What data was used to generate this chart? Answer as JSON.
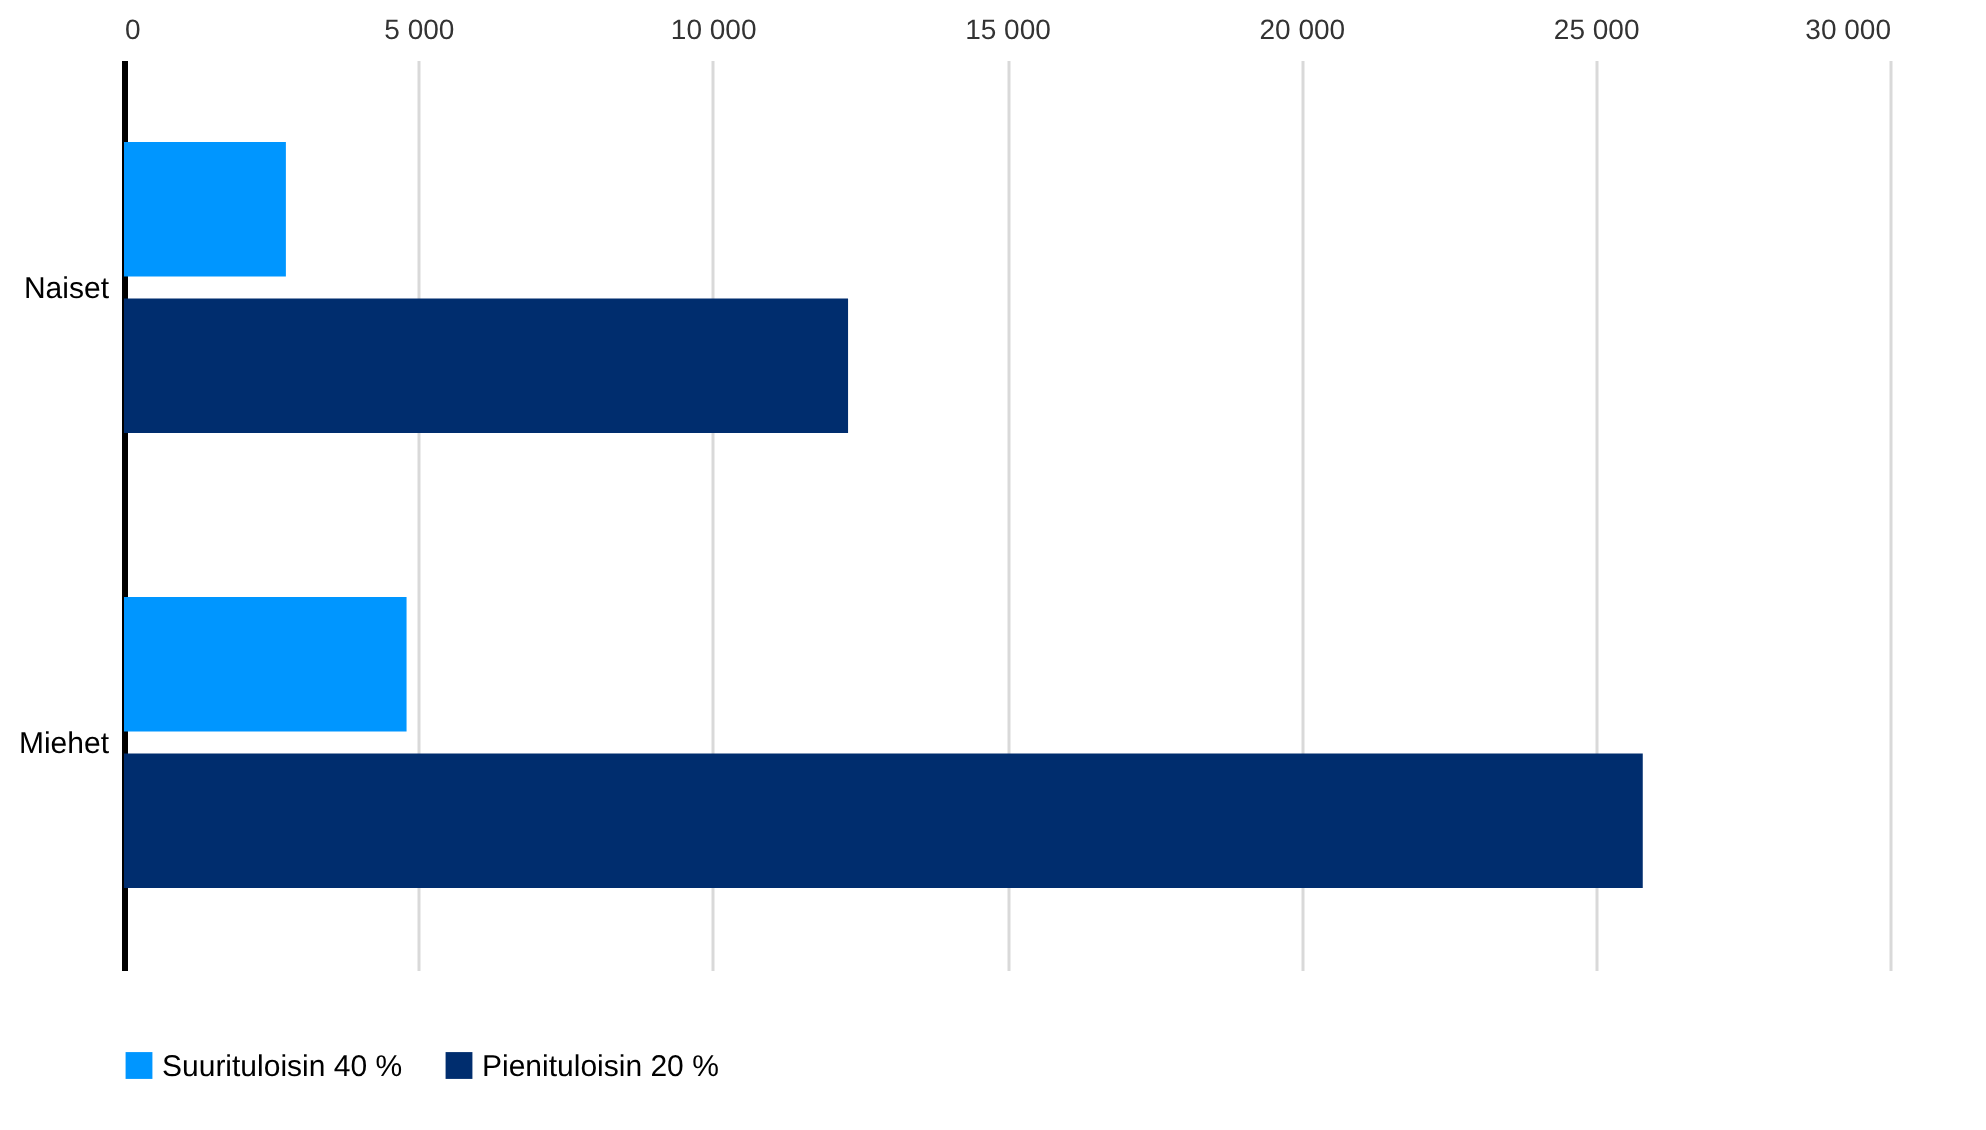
{
  "chart_data": {
    "type": "bar",
    "orientation": "horizontal",
    "categories": [
      "Naiset",
      "Miehet"
    ],
    "series": [
      {
        "name": "Suurituloisin 40 %",
        "color": "#0096ff",
        "values": [
          2750,
          4800
        ]
      },
      {
        "name": "Pienituloisin 20 %",
        "color": "#002d6e",
        "values": [
          12300,
          25800
        ]
      }
    ],
    "xlim": [
      0,
      30000
    ],
    "xticks": [
      0,
      {
        "value": 5000,
        "label": "5 000"
      },
      {
        "value": 10000,
        "label": "10 000"
      },
      {
        "value": 15000,
        "label": "15 000"
      },
      {
        "value": 20000,
        "label": "20 000"
      },
      {
        "value": 25000,
        "label": "25 000"
      },
      {
        "value": 30000,
        "label": "30 000"
      }
    ],
    "grid": "x",
    "legend": "bottom"
  }
}
